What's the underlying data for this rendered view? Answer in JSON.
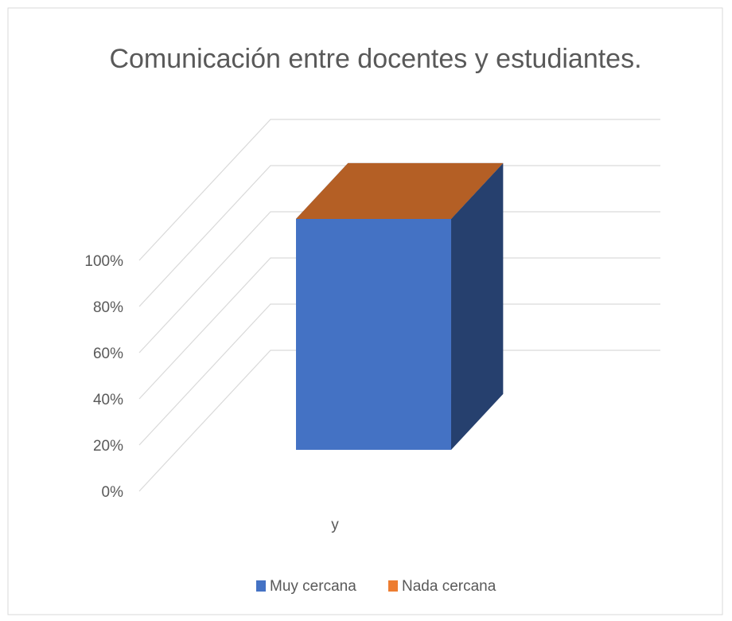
{
  "chart_data": {
    "type": "bar3d_stacked",
    "title": "Comunicación entre docentes y estudiantes.",
    "categories": [
      "y"
    ],
    "series": [
      {
        "name": "Muy cercana",
        "color": "#4472c4",
        "values": [
          100
        ]
      },
      {
        "name": "Nada cercana",
        "color": "#ed7d31",
        "values": [
          0
        ]
      }
    ],
    "ylim": [
      0,
      100
    ],
    "yticks": [
      {
        "value": 0,
        "label": "0%"
      },
      {
        "value": 20,
        "label": "20%"
      },
      {
        "value": 40,
        "label": "40%"
      },
      {
        "value": 60,
        "label": "60%"
      },
      {
        "value": 80,
        "label": "80%"
      },
      {
        "value": 100,
        "label": "100%"
      }
    ],
    "grid": true,
    "legend": "bottom"
  }
}
